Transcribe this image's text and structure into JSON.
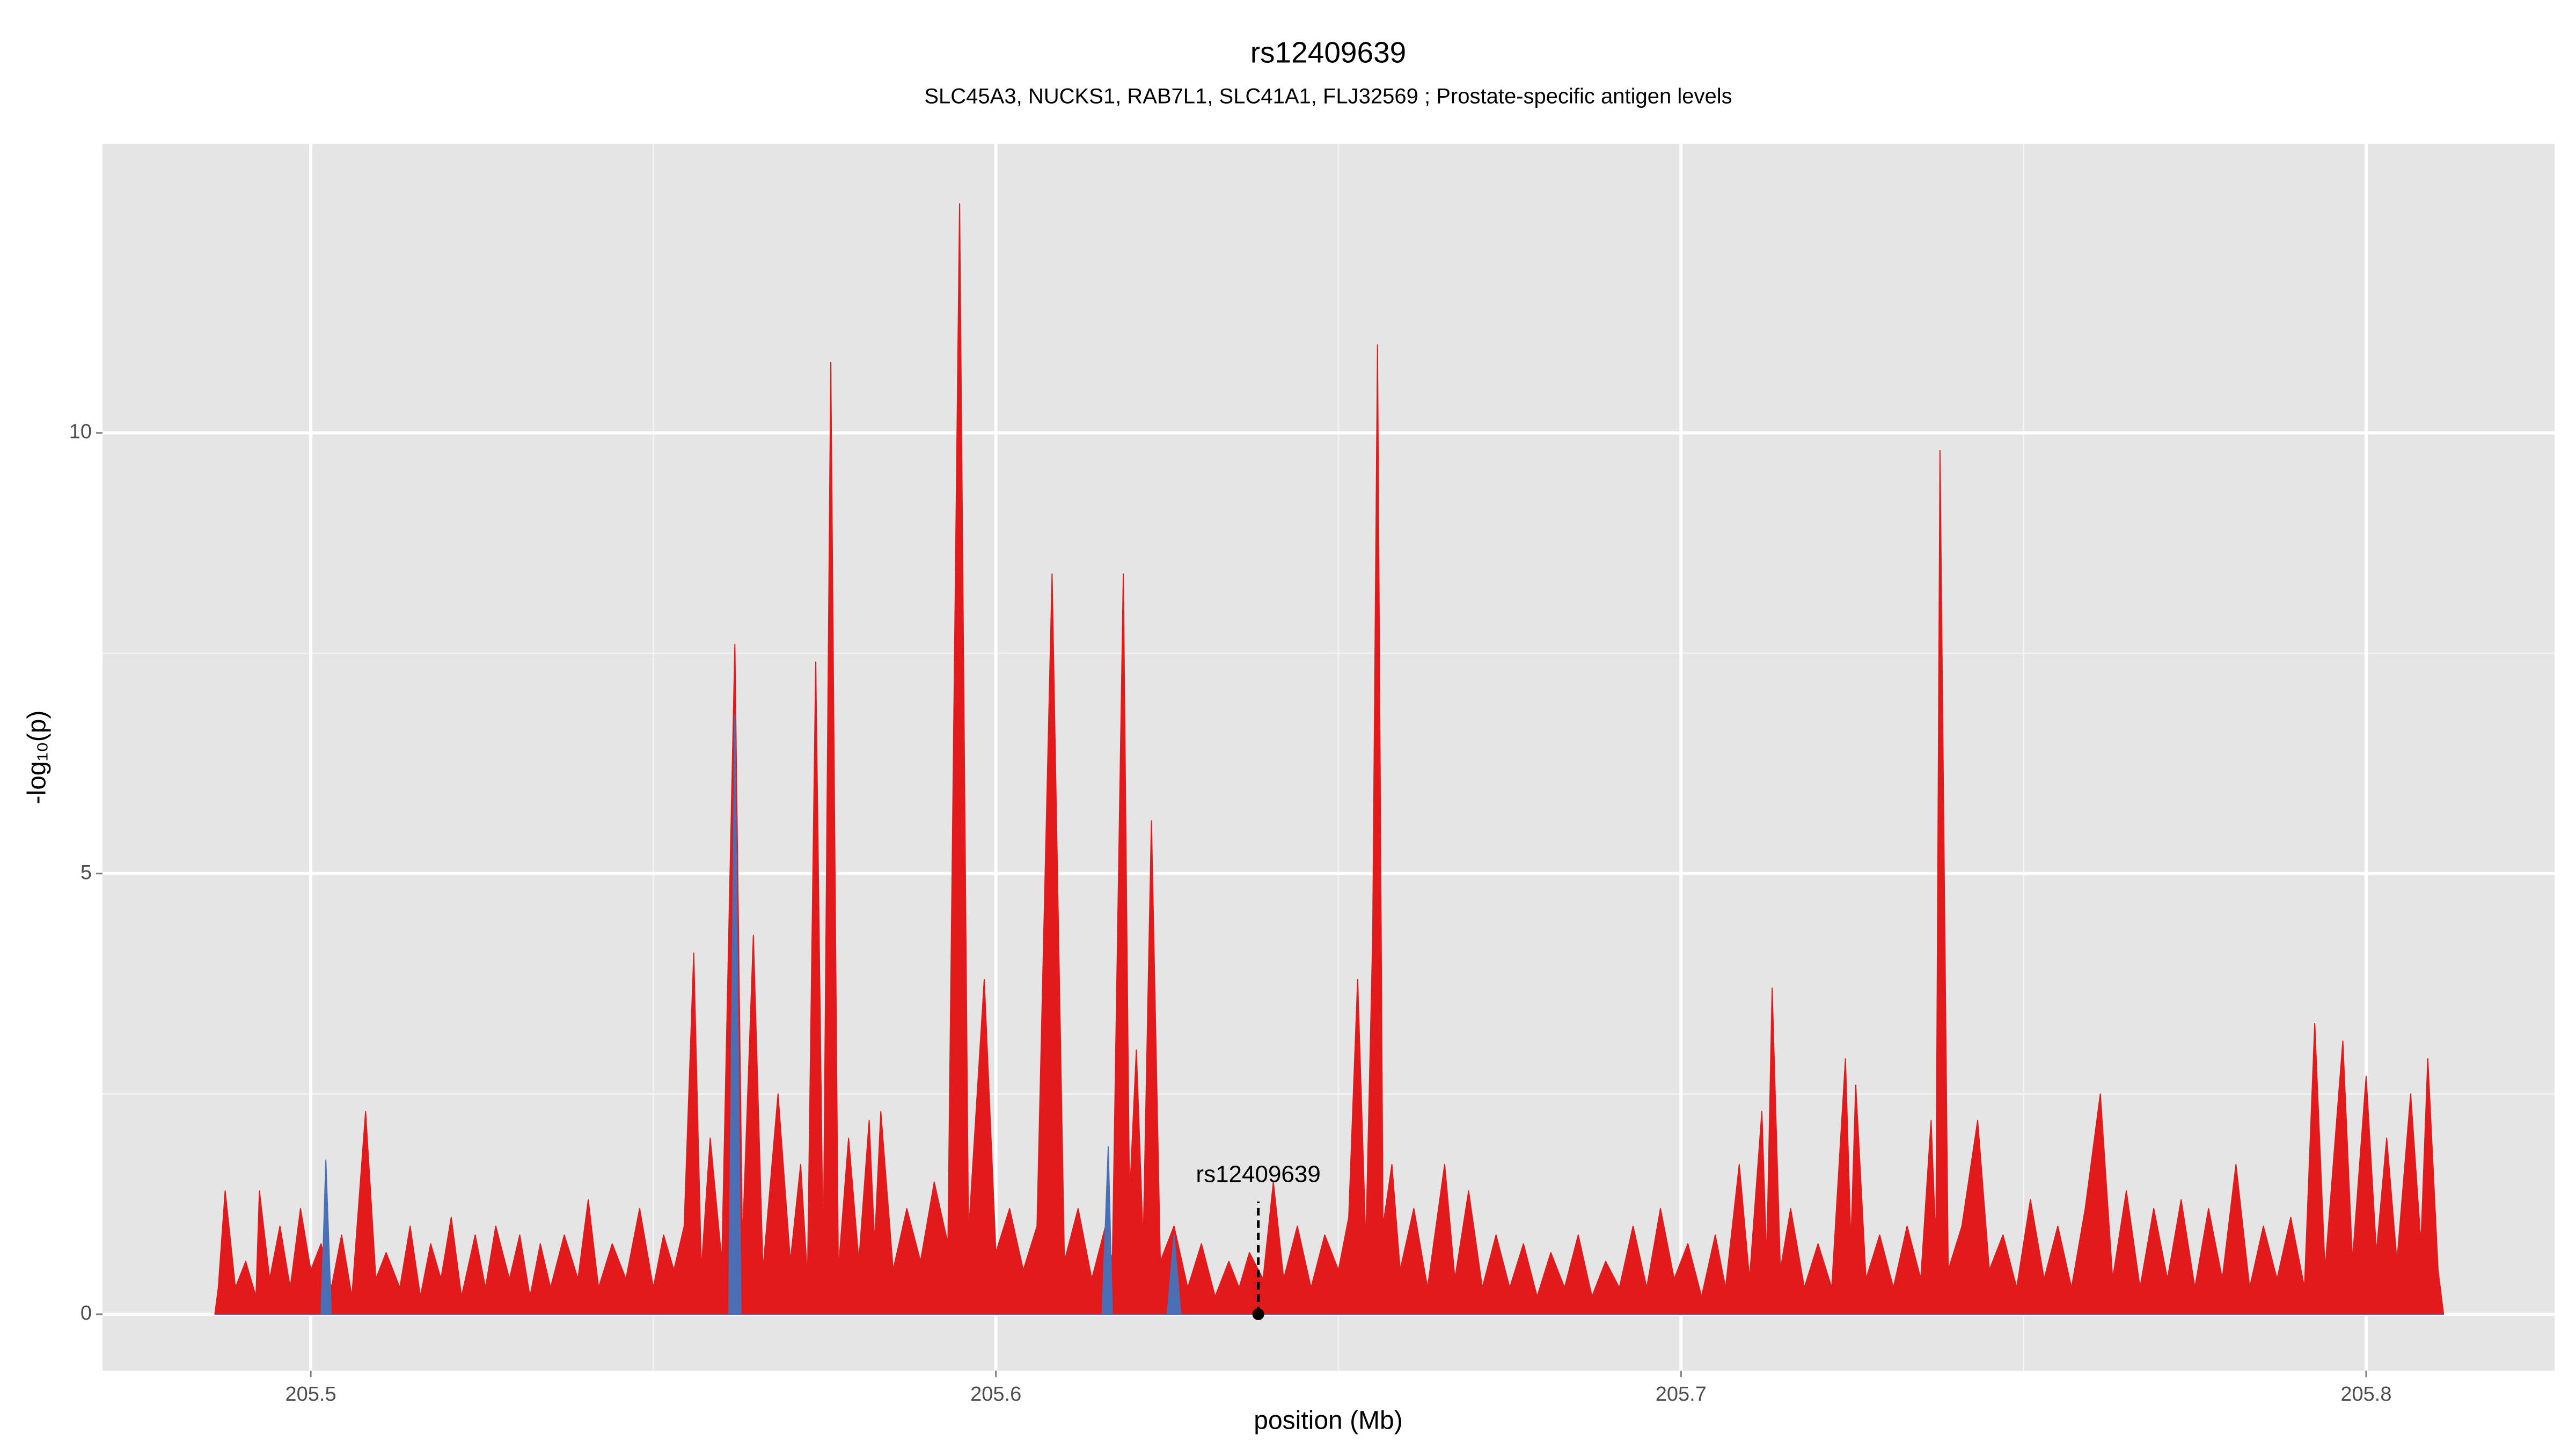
{
  "chart_data": {
    "type": "area",
    "title": "rs12409639",
    "subtitle": "SLC45A3, NUCKS1, RAB7L1, SLC41A1, FLJ32569 ; Prostate-specific antigen levels",
    "xlabel": "position (Mb)",
    "ylabel": "-log₁₀(p)",
    "xlim": [
      205.4696,
      205.8275
    ],
    "ylim": [
      -0.64,
      13.28
    ],
    "xticks": [
      {
        "value": 205.5,
        "label": "205.5"
      },
      {
        "value": 205.6,
        "label": "205.6"
      },
      {
        "value": 205.7,
        "label": "205.7"
      },
      {
        "value": 205.8,
        "label": "205.8"
      }
    ],
    "yticks": [
      0,
      5,
      10
    ],
    "grid": true,
    "annotation": {
      "label": "rs12409639",
      "x": 205.6383
    },
    "series": [
      {
        "color": "#e31a1c",
        "x": [
          205.486,
          205.4865,
          205.4875,
          205.489,
          205.4905,
          205.492,
          205.4925,
          205.494,
          205.4955,
          205.497,
          205.4985,
          205.5,
          205.5015,
          205.503,
          205.5045,
          205.506,
          205.508,
          205.5095,
          205.511,
          205.513,
          205.5145,
          205.516,
          205.5175,
          205.519,
          205.5205,
          205.522,
          205.524,
          205.5255,
          205.527,
          205.529,
          205.5305,
          205.532,
          205.5335,
          205.535,
          205.537,
          205.539,
          205.5405,
          205.542,
          205.544,
          205.546,
          205.548,
          205.55,
          205.5515,
          205.553,
          205.5545,
          205.5559,
          205.557,
          205.5583,
          205.56,
          205.5619,
          205.563,
          205.5646,
          205.566,
          205.5682,
          205.57,
          205.5715,
          205.5725,
          205.5737,
          205.5748,
          205.5759,
          205.577,
          205.5785,
          205.58,
          205.5815,
          205.5823,
          205.5832,
          205.585,
          205.587,
          205.589,
          205.591,
          205.593,
          205.5947,
          205.596,
          205.5983,
          205.6,
          205.602,
          205.604,
          205.606,
          205.6082,
          205.61,
          205.612,
          205.614,
          205.616,
          205.617,
          205.6186,
          205.6195,
          205.6205,
          205.6215,
          205.6227,
          205.624,
          205.626,
          205.628,
          205.63,
          205.632,
          205.634,
          205.6355,
          205.637,
          205.639,
          205.6405,
          205.642,
          205.644,
          205.646,
          205.648,
          205.65,
          205.6515,
          205.6528,
          205.654,
          205.655,
          205.6557,
          205.6565,
          205.6578,
          205.659,
          205.661,
          205.663,
          205.6655,
          205.667,
          205.669,
          205.671,
          205.673,
          205.675,
          205.677,
          205.679,
          205.681,
          205.683,
          205.685,
          205.687,
          205.689,
          205.691,
          205.693,
          205.695,
          205.697,
          205.699,
          205.701,
          205.703,
          205.705,
          205.7065,
          205.7085,
          205.71,
          205.7118,
          205.7125,
          205.7133,
          205.7145,
          205.716,
          205.718,
          205.72,
          205.722,
          205.724,
          205.7248,
          205.7255,
          205.727,
          205.729,
          205.731,
          205.733,
          205.735,
          205.7365,
          205.7372,
          205.7378,
          205.739,
          205.741,
          205.7433,
          205.745,
          205.747,
          205.749,
          205.751,
          205.753,
          205.755,
          205.757,
          205.759,
          205.7612,
          205.763,
          205.765,
          205.767,
          205.769,
          205.771,
          205.773,
          205.775,
          205.777,
          205.779,
          205.781,
          205.783,
          205.785,
          205.787,
          205.789,
          205.791,
          205.7925,
          205.794,
          205.7966,
          205.798,
          205.8,
          205.8015,
          205.803,
          205.8045,
          205.8065,
          205.808,
          205.809,
          205.8105,
          205.8113
        ],
        "values": [
          0,
          0.3,
          1.4,
          0.3,
          0.6,
          0.2,
          1.4,
          0.4,
          1.0,
          0.3,
          1.2,
          0.5,
          0.8,
          0.3,
          0.9,
          0.2,
          2.3,
          0.4,
          0.7,
          0.3,
          1.0,
          0.2,
          0.8,
          0.4,
          1.1,
          0.2,
          0.9,
          0.3,
          1.0,
          0.4,
          0.9,
          0.2,
          0.8,
          0.3,
          0.9,
          0.4,
          1.3,
          0.3,
          0.8,
          0.4,
          1.2,
          0.3,
          0.9,
          0.5,
          1.0,
          4.1,
          0.5,
          2.0,
          0.6,
          7.6,
          0.8,
          4.3,
          0.5,
          2.5,
          0.6,
          1.7,
          0.4,
          7.4,
          0.6,
          10.8,
          0.5,
          2.0,
          0.6,
          2.2,
          0.8,
          2.3,
          0.5,
          1.2,
          0.6,
          1.5,
          0.8,
          12.6,
          0.9,
          3.8,
          0.7,
          1.2,
          0.5,
          1.0,
          8.4,
          0.6,
          1.2,
          0.4,
          1.0,
          0.6,
          8.4,
          1.3,
          3.0,
          0.8,
          5.6,
          0.6,
          1.0,
          0.3,
          0.8,
          0.2,
          0.6,
          0.3,
          0.7,
          0.4,
          1.5,
          0.4,
          1.0,
          0.3,
          0.9,
          0.5,
          1.1,
          3.8,
          0.8,
          4.3,
          11.0,
          1.0,
          1.7,
          0.5,
          1.2,
          0.3,
          1.7,
          0.4,
          1.4,
          0.3,
          0.9,
          0.3,
          0.8,
          0.2,
          0.7,
          0.3,
          0.9,
          0.2,
          0.6,
          0.3,
          1.0,
          0.3,
          1.2,
          0.4,
          0.8,
          0.2,
          0.9,
          0.3,
          1.7,
          0.4,
          2.3,
          0.6,
          3.7,
          0.5,
          1.2,
          0.3,
          0.8,
          0.3,
          2.9,
          0.8,
          2.6,
          0.4,
          0.9,
          0.3,
          1.0,
          0.4,
          2.2,
          0.8,
          9.8,
          0.5,
          1.0,
          2.2,
          0.5,
          0.9,
          0.3,
          1.3,
          0.4,
          1.0,
          0.3,
          1.2,
          2.5,
          0.4,
          1.4,
          0.3,
          1.2,
          0.4,
          1.3,
          0.3,
          1.2,
          0.4,
          1.7,
          0.3,
          1.0,
          0.4,
          1.1,
          0.3,
          3.3,
          0.5,
          3.1,
          0.6,
          2.7,
          0.7,
          2.0,
          0.6,
          2.5,
          0.8,
          2.9,
          0.5,
          0
        ]
      },
      {
        "color": "#4a6fb5",
        "x": [
          205.486,
          205.5015,
          205.5022,
          205.503,
          205.561,
          205.5619,
          205.5628,
          205.6155,
          205.6164,
          205.617,
          205.625,
          205.626,
          205.627,
          205.8113
        ],
        "values": [
          0,
          0,
          1.75,
          0,
          0,
          6.8,
          0,
          0,
          1.9,
          0,
          0,
          0.9,
          0,
          0
        ]
      }
    ]
  }
}
